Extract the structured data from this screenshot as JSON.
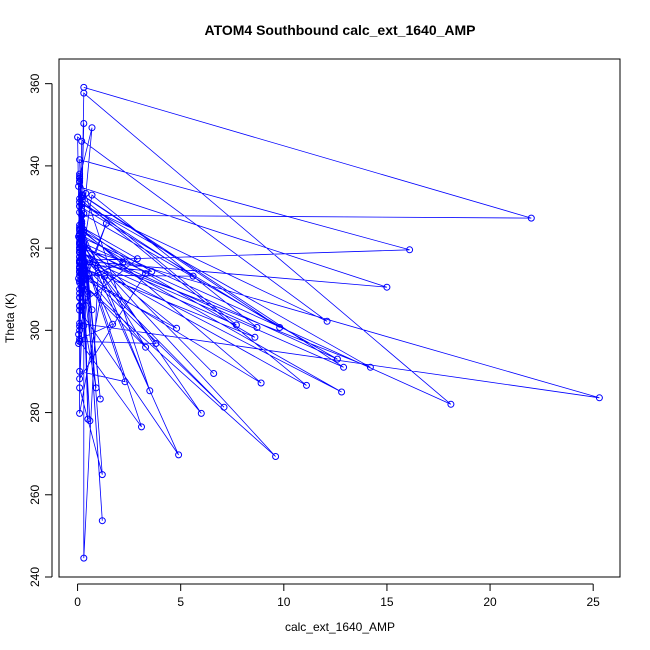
{
  "chart_data": {
    "type": "line",
    "title": "ATOM4 Southbound calc_ext_1640_AMP",
    "xlabel": "calc_ext_1640_AMP",
    "ylabel": "Theta (K)",
    "xlim": [
      -0.9,
      26.3
    ],
    "ylim": [
      240,
      366
    ],
    "xticks": [
      0,
      5,
      10,
      15,
      20,
      25
    ],
    "yticks": [
      240,
      260,
      280,
      300,
      320,
      340,
      360
    ],
    "grid": false,
    "legend": "none",
    "series_color": "#0000ff",
    "marker": "open-circle",
    "series": [
      {
        "points": [
          [
            0.3,
            359.1
          ],
          [
            22.0,
            327.3
          ],
          [
            0.2,
            328.0
          ],
          [
            0.1,
            341.5
          ],
          [
            16.1,
            319.6
          ],
          [
            0.1,
            317.0
          ],
          [
            0.0,
            347.0
          ],
          [
            12.1,
            302.2
          ],
          [
            0.2,
            330.6
          ],
          [
            0.3,
            350.3
          ],
          [
            0.1,
            316.4
          ],
          [
            0.05,
            335.0
          ],
          [
            15.0,
            310.5
          ],
          [
            0.1,
            316.9
          ],
          [
            0.7,
            349.3
          ],
          [
            0.1,
            337.0
          ],
          [
            0.1,
            325.6
          ],
          [
            0.1,
            301.7
          ],
          [
            25.3,
            283.6
          ],
          [
            0.1,
            320.0
          ],
          [
            0.2,
            346.0
          ],
          [
            0.1,
            323.4
          ],
          [
            0.05,
            312.6
          ],
          [
            0.3,
            320.9
          ],
          [
            0.05,
            322.8
          ],
          [
            0.1,
            314.2
          ],
          [
            0.1,
            317.9
          ],
          [
            0.4,
            333.3
          ],
          [
            0.1,
            330.2
          ],
          [
            0.2,
            327.9
          ],
          [
            0.3,
            357.7
          ],
          [
            18.1,
            282.0
          ],
          [
            0.2,
            322.6
          ],
          [
            0.1,
            331.2
          ],
          [
            14.2,
            291.0
          ],
          [
            0.1,
            318.9
          ],
          [
            0.2,
            333.0
          ],
          [
            12.9,
            291.0
          ],
          [
            0.1,
            319.1
          ],
          [
            0.1,
            321.6
          ],
          [
            12.6,
            293.0
          ],
          [
            0.1,
            328.7
          ],
          [
            0.2,
            332.9
          ],
          [
            9.8,
            300.7
          ],
          [
            0.1,
            330.2
          ],
          [
            0.1,
            311.6
          ],
          [
            0.2,
            313.9
          ],
          [
            0.2,
            326.5
          ],
          [
            0.1,
            321.1
          ],
          [
            12.8,
            285.0
          ],
          [
            0.1,
            317.8
          ],
          [
            0.3,
            320.5
          ],
          [
            0.7,
            332.9
          ],
          [
            8.7,
            300.7
          ],
          [
            0.3,
            319.9
          ],
          [
            0.1,
            323.5
          ],
          [
            8.6,
            298.3
          ],
          [
            0.1,
            315.5
          ],
          [
            0.1,
            322.4
          ],
          [
            0.2,
            317.0
          ],
          [
            11.1,
            286.6
          ],
          [
            0.1,
            332.0
          ],
          [
            0.1,
            314.1
          ],
          [
            8.9,
            287.2
          ],
          [
            0.1,
            325.0
          ],
          [
            0.1,
            324.2
          ],
          [
            0.2,
            317.8
          ],
          [
            7.7,
            301.3
          ],
          [
            0.2,
            332.3
          ],
          [
            0.2,
            320.6
          ],
          [
            9.6,
            269.3
          ],
          [
            0.1,
            312.0
          ],
          [
            0.1,
            310.0
          ],
          [
            0.2,
            316.3
          ],
          [
            0.3,
            312.5
          ],
          [
            0.1,
            322.4
          ],
          [
            6.6,
            289.5
          ],
          [
            0.1,
            322.4
          ],
          [
            0.3,
            328.4
          ],
          [
            0.2,
            316.3
          ],
          [
            7.1,
            281.3
          ],
          [
            0.1,
            315.3
          ],
          [
            0.1,
            306.0
          ],
          [
            0.1,
            301.0
          ],
          [
            0.2,
            330.8
          ],
          [
            5.6,
            313.2
          ],
          [
            0.1,
            313.4
          ],
          [
            0.1,
            315.2
          ],
          [
            6.0,
            279.8
          ],
          [
            0.1,
            323.1
          ],
          [
            0.2,
            329.0
          ],
          [
            0.4,
            312.3
          ],
          [
            4.8,
            300.5
          ],
          [
            0.1,
            319.6
          ],
          [
            0.05,
            296.8
          ],
          [
            0.3,
            321.3
          ],
          [
            4.9,
            269.7
          ],
          [
            0.1,
            304.9
          ],
          [
            0.1,
            320.2
          ],
          [
            0.2,
            324.3
          ],
          [
            3.6,
            314.3
          ],
          [
            0.1,
            316.3
          ],
          [
            0.2,
            310.4
          ],
          [
            0.2,
            319.7
          ],
          [
            3.8,
            296.8
          ],
          [
            0.1,
            297.3
          ],
          [
            0.2,
            325.1
          ],
          [
            3.3,
            313.8
          ],
          [
            0.1,
            288.2
          ],
          [
            0.2,
            325.0
          ],
          [
            3.5,
            285.3
          ],
          [
            0.1,
            337.5
          ],
          [
            0.1,
            336.0
          ],
          [
            0.2,
            311.6
          ],
          [
            3.3,
            295.9
          ],
          [
            0.1,
            322.5
          ],
          [
            0.1,
            316.7
          ],
          [
            0.2,
            320.8
          ],
          [
            3.1,
            276.5
          ],
          [
            0.1,
            297.3
          ],
          [
            0.2,
            325.1
          ],
          [
            2.9,
            317.4
          ],
          [
            0.1,
            305.9
          ],
          [
            0.1,
            321.2
          ],
          [
            2.3,
            287.5
          ],
          [
            0.1,
            290.0
          ],
          [
            0.2,
            326.0
          ],
          [
            0.2,
            312.3
          ],
          [
            2.2,
            316.5
          ],
          [
            0.1,
            324.6
          ],
          [
            0.2,
            318.0
          ],
          [
            1.7,
            301.5
          ],
          [
            0.1,
            297.9
          ],
          [
            0.1,
            308.0
          ],
          [
            1.4,
            326.0
          ],
          [
            0.3,
            312.4
          ],
          [
            0.1,
            286.0
          ],
          [
            1.2,
            264.9
          ],
          [
            0.1,
            336.3
          ],
          [
            0.1,
            315.0
          ],
          [
            1.3,
            313.1
          ],
          [
            0.1,
            279.8
          ],
          [
            0.1,
            337.0
          ],
          [
            1.2,
            253.7
          ],
          [
            0.1,
            338.0
          ],
          [
            0.1,
            318.9
          ],
          [
            1.0,
            313.9
          ],
          [
            0.3,
            244.6
          ],
          [
            0.3,
            324.4
          ],
          [
            0.5,
            278.4
          ],
          [
            0.2,
            325.9
          ],
          [
            1.1,
            283.3
          ],
          [
            0.3,
            323.6
          ],
          [
            0.3,
            301.1
          ],
          [
            0.2,
            315.5
          ],
          [
            0.9,
            286.0
          ],
          [
            0.1,
            307.9
          ],
          [
            0.2,
            310.3
          ],
          [
            0.6,
            278.0
          ],
          [
            0.1,
            320.8
          ],
          [
            0.2,
            312.0
          ],
          [
            0.7,
            305.0
          ],
          [
            0.1,
            309.0
          ],
          [
            0.1,
            314.4
          ],
          [
            0.5,
            308.8
          ],
          [
            0.1,
            300.0
          ],
          [
            0.1,
            316.6
          ],
          [
            0.05,
            299.0
          ],
          [
            0.2,
            306.7
          ]
        ]
      }
    ]
  }
}
